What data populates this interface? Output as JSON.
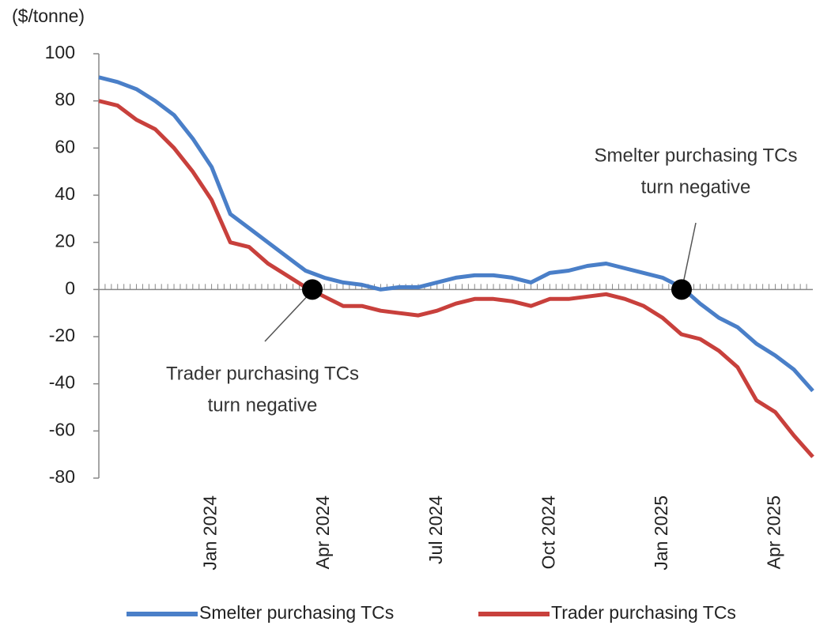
{
  "chart_data": {
    "type": "line",
    "y_label": "($/tonne)",
    "categories": [
      null,
      null,
      null,
      null,
      null,
      null,
      "Jan 2024",
      null,
      null,
      null,
      null,
      null,
      "Apr 2024",
      null,
      null,
      null,
      null,
      null,
      "Jul 2024",
      null,
      null,
      null,
      null,
      null,
      "Oct 2024",
      null,
      null,
      null,
      null,
      null,
      "Jan 2025",
      null,
      null,
      null,
      null,
      null,
      "Apr 2025",
      null,
      null
    ],
    "series": [
      {
        "name": "Smelter purchasing TCs",
        "color": "#4a7fc8",
        "values": [
          90,
          88,
          85,
          80,
          74,
          64,
          52,
          32,
          26,
          20,
          14,
          8,
          5,
          3,
          2,
          0,
          1,
          1,
          3,
          5,
          6,
          6,
          5,
          3,
          7,
          8,
          10,
          11,
          9,
          7,
          5,
          1,
          -6,
          -12,
          -16,
          -23,
          -28,
          -34,
          -43
        ]
      },
      {
        "name": "Trader purchasing TCs",
        "color": "#c8403c",
        "values": [
          80,
          78,
          72,
          68,
          60,
          50,
          38,
          20,
          18,
          11,
          6,
          1,
          -3,
          -7,
          -7,
          -9,
          -10,
          -11,
          -9,
          -6,
          -4,
          -4,
          -5,
          -7,
          -4,
          -4,
          -3,
          -2,
          -4,
          -7,
          -12,
          -19,
          -21,
          -26,
          -33,
          -47,
          -52,
          -62,
          -71
        ]
      }
    ],
    "ylim": [
      -80,
      100
    ],
    "yticks": [
      -80,
      -60,
      -40,
      -20,
      0,
      20,
      40,
      60,
      80,
      100
    ],
    "annotations": [
      {
        "lines": [
          "Trader purchasing TCs",
          "turn negative"
        ]
      },
      {
        "lines": [
          "Smelter purchasing TCs",
          "turn negative"
        ]
      }
    ],
    "legend": "bottom"
  }
}
